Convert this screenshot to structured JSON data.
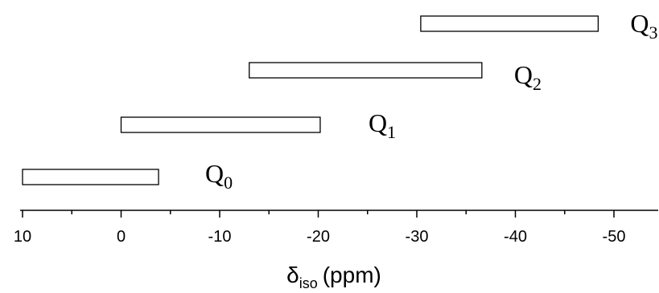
{
  "chart_data": {
    "type": "range-bar",
    "title": "",
    "xlabel": {
      "symbol": "δ",
      "subscript": "iso",
      "unit": "(ppm)"
    },
    "xlim": [
      10,
      -55
    ],
    "x_reversed": true,
    "xticks_major": [
      10,
      0,
      -10,
      -20,
      -30,
      -40,
      -50
    ],
    "xticks_minor": [
      5,
      -5,
      -15,
      -25,
      -35,
      -45
    ],
    "grid": false,
    "ranges": [
      {
        "label": "Q",
        "subscript": "0",
        "start": 10,
        "end": -3.8
      },
      {
        "label": "Q",
        "subscript": "1",
        "start": 0,
        "end": -20.2
      },
      {
        "label": "Q",
        "subscript": "2",
        "start": -13,
        "end": -36.6
      },
      {
        "label": "Q",
        "subscript": "3",
        "start": -30.4,
        "end": -48.4
      }
    ]
  }
}
